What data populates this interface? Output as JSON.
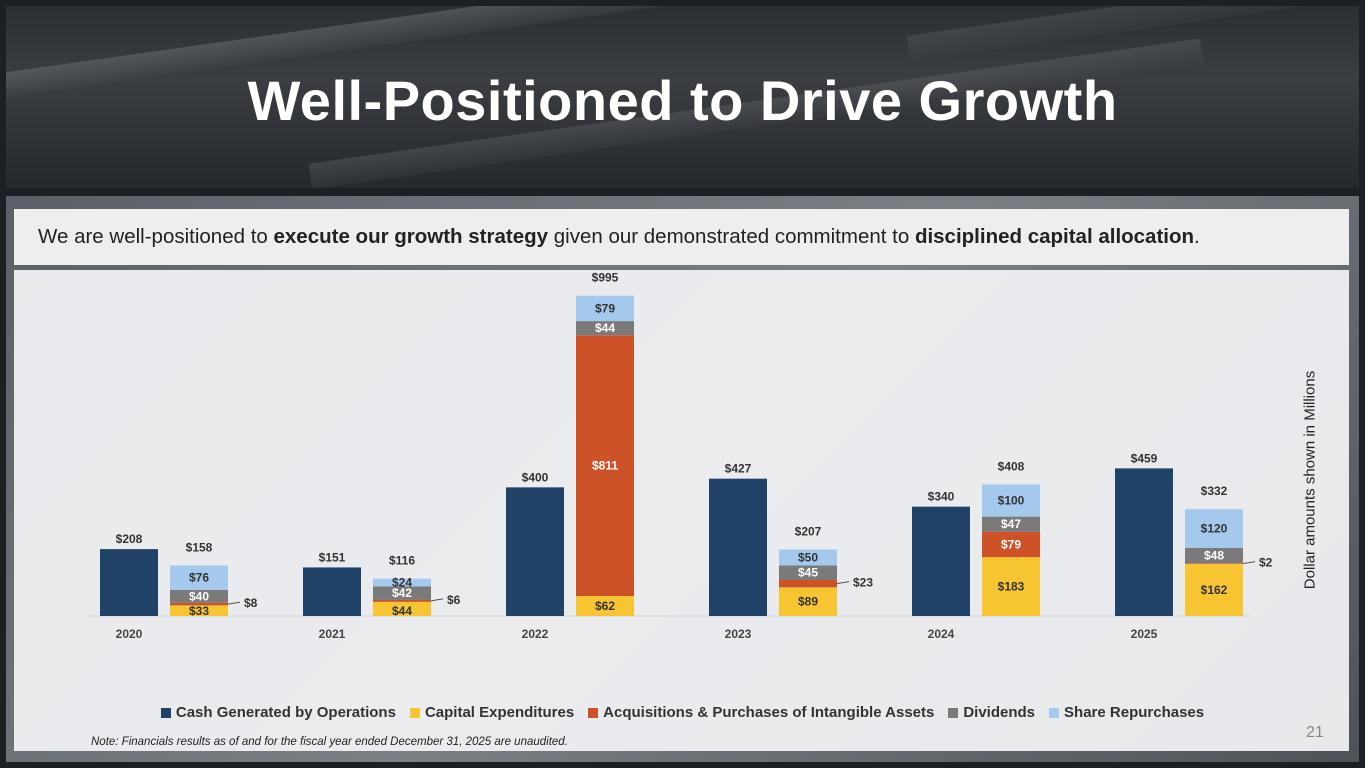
{
  "title": "Well-Positioned to Drive Growth",
  "intro": {
    "part1": "We are well-positioned to ",
    "bold1": "execute our growth strategy",
    "part2": " given our demonstrated commitment to ",
    "bold2": "disciplined capital allocation",
    "part3": "."
  },
  "yaxis_label": "Dollar amounts shown in Millions",
  "note": "Note: Financials results as of and for the fiscal year ended December 31, 2025 are unaudited.",
  "page_number": "21",
  "colors": {
    "cash": "#1f4266",
    "capex": "#f6c531",
    "acq": "#ce5227",
    "div": "#7a7a7a",
    "rep": "#a4c9ec"
  },
  "chart_data": {
    "type": "bar",
    "stacked": true,
    "categories": [
      "2020",
      "2021",
      "2022",
      "2023",
      "2024",
      "2025"
    ],
    "units": "$ Millions",
    "series": [
      {
        "name": "Cash Generated by Operations",
        "key": "cash",
        "stack": "generated",
        "values": [
          208,
          151,
          400,
          427,
          340,
          459
        ]
      },
      {
        "name": "Capital Expenditures",
        "key": "capex",
        "stack": "deployed",
        "values": [
          33,
          44,
          62,
          89,
          183,
          162
        ]
      },
      {
        "name": "Acquisitions & Purchases of Intangible Assets",
        "key": "acq",
        "stack": "deployed",
        "values": [
          8,
          6,
          811,
          23,
          79,
          2
        ]
      },
      {
        "name": "Dividends",
        "key": "div",
        "stack": "deployed",
        "values": [
          40,
          42,
          44,
          45,
          47,
          48
        ]
      },
      {
        "name": "Share Repurchases",
        "key": "rep",
        "stack": "deployed",
        "values": [
          76,
          24,
          79,
          50,
          100,
          120
        ]
      }
    ],
    "deployed_totals": [
      158,
      116,
      995,
      207,
      408,
      332
    ],
    "legend_position": "bottom"
  }
}
